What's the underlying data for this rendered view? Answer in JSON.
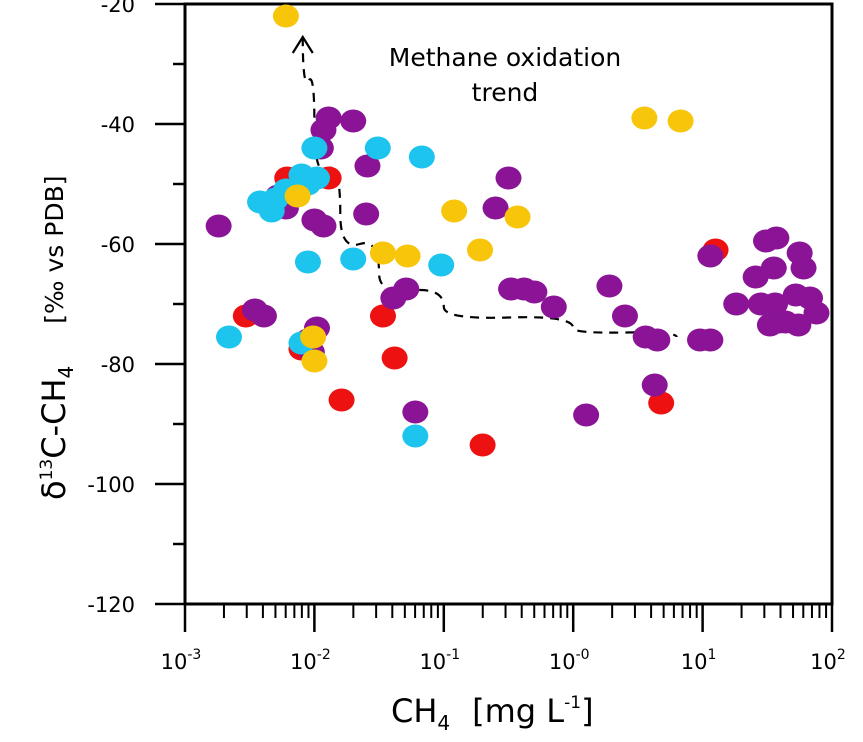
{
  "chart_data": {
    "type": "scatter",
    "x_scale": "log",
    "xlim_log10": [
      -3,
      2
    ],
    "ylim": [
      -120,
      -20
    ],
    "x_ticks": [
      {
        "base": "10",
        "exp": "-3",
        "value_log10": -3
      },
      {
        "base": "10",
        "exp": "-2",
        "value_log10": -2
      },
      {
        "base": "10",
        "exp": "-1",
        "value_log10": -1
      },
      {
        "base": "10",
        "exp": "-0",
        "value_log10": 0
      },
      {
        "base": "10",
        "exp": "1",
        "value_log10": 1
      },
      {
        "base": "10",
        "exp": "2",
        "value_log10": 2
      }
    ],
    "y_ticks": [
      "-20",
      "-40",
      "-60",
      "-80",
      "-100",
      "-120"
    ],
    "xlabel": {
      "main": "CH",
      "sub": "4",
      "unit_open": "[mg L",
      "unit_sup": "-1",
      "unit_close": "]"
    },
    "ylabel": {
      "delta": "δ",
      "sup": "13",
      "mid": "C-CH",
      "sub": "4",
      "unit": "[‰ vs PDB]"
    },
    "annotation": {
      "line1": "Methane oxidation",
      "line2": "trend"
    },
    "trend_curve": [
      [
        -2.09,
        -25.5
      ],
      [
        -2.0,
        -40.0
      ],
      [
        -1.8,
        -55.0
      ],
      [
        -1.5,
        -65.0
      ],
      [
        -1.0,
        -70.5
      ],
      [
        0.0,
        -74.0
      ],
      [
        0.8,
        -75.5
      ]
    ],
    "series": [
      {
        "name": "red",
        "color": "#EE1111",
        "points": [
          [
            -2.21,
            -49
          ],
          [
            -1.89,
            -49
          ],
          [
            -2.53,
            -72
          ],
          [
            -2.1,
            -77.5
          ],
          [
            -1.79,
            -86
          ],
          [
            -1.38,
            -79
          ],
          [
            -1.47,
            -72
          ],
          [
            -0.7,
            -93.5
          ],
          [
            0.68,
            -86.5
          ],
          [
            1.1,
            -61
          ]
        ]
      },
      {
        "name": "purple",
        "color": "#8B1496",
        "points": [
          [
            -2.74,
            -57
          ],
          [
            -2.46,
            -71
          ],
          [
            -2.39,
            -72
          ],
          [
            -2.28,
            -52
          ],
          [
            -2.22,
            -54
          ],
          [
            -1.95,
            -44
          ],
          [
            -1.93,
            -41
          ],
          [
            -1.89,
            -39
          ],
          [
            -1.7,
            -39.5
          ],
          [
            -1.59,
            -47
          ],
          [
            -1.6,
            -55
          ],
          [
            -1.93,
            -57
          ],
          [
            -2.0,
            -56
          ],
          [
            -1.98,
            -74
          ],
          [
            -2.05,
            -76
          ],
          [
            -2.02,
            -78
          ],
          [
            -1.39,
            -69
          ],
          [
            -1.29,
            -67.5
          ],
          [
            -1.22,
            -88
          ],
          [
            -0.5,
            -49
          ],
          [
            -0.6,
            -54
          ],
          [
            -0.48,
            -67.5
          ],
          [
            -0.38,
            -67.5
          ],
          [
            -0.3,
            -68
          ],
          [
            -0.15,
            -70.5
          ],
          [
            0.1,
            -88.5
          ],
          [
            0.28,
            -67
          ],
          [
            0.4,
            -72
          ],
          [
            0.56,
            -75.5
          ],
          [
            0.65,
            -76
          ],
          [
            0.63,
            -83.5
          ],
          [
            0.98,
            -76
          ],
          [
            1.06,
            -76
          ],
          [
            1.06,
            -62
          ],
          [
            1.26,
            -70
          ],
          [
            1.41,
            -65.5
          ],
          [
            1.49,
            -59.5
          ],
          [
            1.57,
            -59
          ],
          [
            1.55,
            -64
          ],
          [
            1.45,
            -70
          ],
          [
            1.52,
            -73.5
          ],
          [
            1.59,
            -73
          ],
          [
            1.64,
            -73
          ],
          [
            1.74,
            -73.5
          ],
          [
            1.72,
            -68.5
          ],
          [
            1.83,
            -69
          ],
          [
            1.88,
            -71.5
          ],
          [
            1.78,
            -64
          ],
          [
            1.75,
            -61.5
          ],
          [
            1.56,
            -70
          ]
        ]
      },
      {
        "name": "cyan",
        "color": "#1CC4EE",
        "points": [
          [
            -2.0,
            -44
          ],
          [
            -2.42,
            -53
          ],
          [
            -2.3,
            -52.5
          ],
          [
            -2.22,
            -51
          ],
          [
            -2.05,
            -50
          ],
          [
            -1.98,
            -49
          ],
          [
            -2.1,
            -48.5
          ],
          [
            -2.33,
            -54.5
          ],
          [
            -1.51,
            -44
          ],
          [
            -1.17,
            -45.5
          ],
          [
            -1.02,
            -63.5
          ],
          [
            -1.22,
            -92
          ],
          [
            -2.66,
            -75.5
          ],
          [
            -2.05,
            -63
          ],
          [
            -1.7,
            -62.5
          ],
          [
            -2.1,
            -76.5
          ]
        ]
      },
      {
        "name": "yellow",
        "color": "#F7C50A",
        "points": [
          [
            -2.22,
            -22
          ],
          [
            -2.13,
            -52
          ],
          [
            -1.47,
            -61.5
          ],
          [
            -1.28,
            -62
          ],
          [
            -0.92,
            -54.5
          ],
          [
            -0.72,
            -61
          ],
          [
            -0.43,
            -55.5
          ],
          [
            -2.01,
            -75.5
          ],
          [
            -2.0,
            -79.5
          ],
          [
            0.55,
            -39
          ],
          [
            0.83,
            -39.5
          ]
        ]
      }
    ]
  }
}
